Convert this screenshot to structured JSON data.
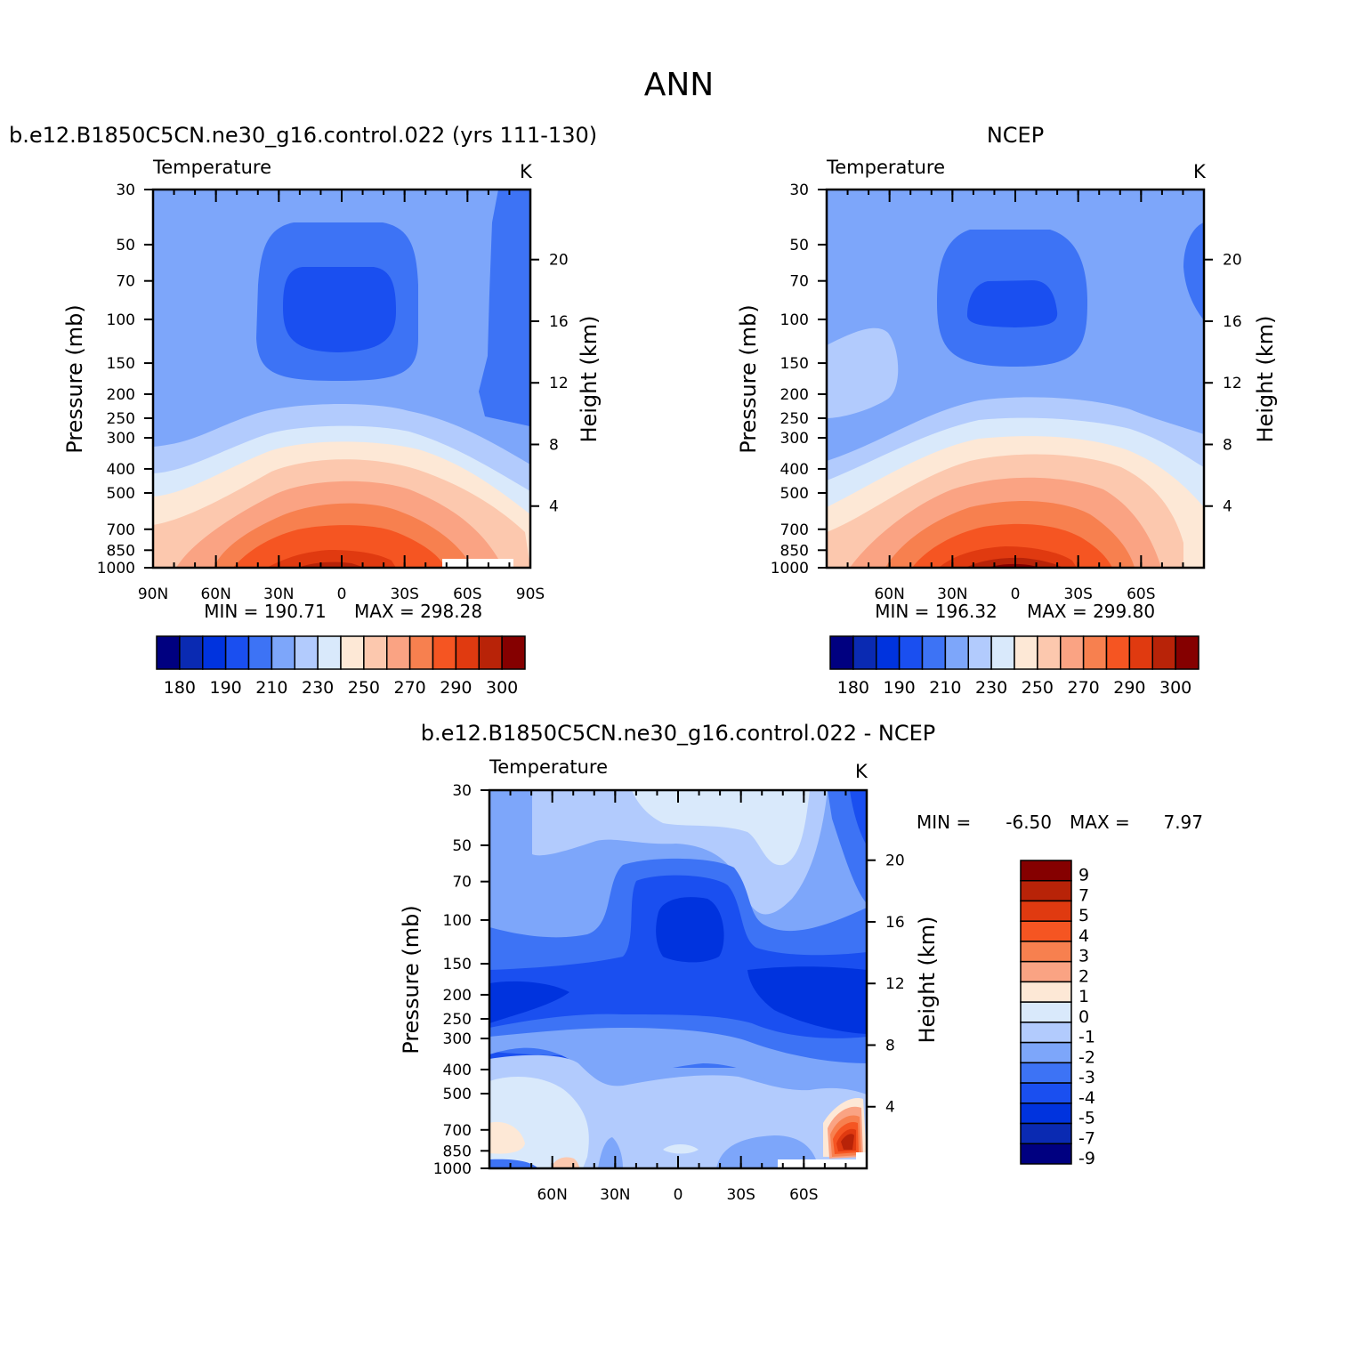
{
  "page_title": "ANN",
  "colors": {
    "abs_scale": [
      "#000080",
      "#0a2ab2",
      "#0033de",
      "#1a4ff0",
      "#3d73f5",
      "#7da6fa",
      "#b2cbfd",
      "#d9e9fb",
      "#fde8d6",
      "#fcc8ae",
      "#faa383",
      "#f7804f",
      "#f55522",
      "#e03a10",
      "#b82308",
      "#850000"
    ],
    "diff_scale": [
      "#000080",
      "#0a2ab2",
      "#0033de",
      "#1a4ff0",
      "#3d73f5",
      "#7da6fa",
      "#b2cbfd",
      "#d9e9fb",
      "#fde8d6",
      "#faa383",
      "#f7804f",
      "#f55522",
      "#e03a10",
      "#b82308",
      "#850000"
    ]
  },
  "chart_data": [
    {
      "type": "contour",
      "id": "model",
      "title": "b.e12.B1850C5CN.ne30_g16.control.022 (yrs 111-130)",
      "subtitle_left": "Temperature",
      "units": "K",
      "xlabel": "",
      "ylabel": "Pressure (mb)",
      "ylabel_right": "Height (km)",
      "x_range": [
        90,
        -90
      ],
      "x_ticks": [
        90,
        60,
        30,
        0,
        -30,
        -60,
        -90
      ],
      "x_tick_labels": [
        "90N",
        "60N",
        "30N",
        "0",
        "30S",
        "60S",
        "90S"
      ],
      "y_ticks": [
        30,
        50,
        70,
        100,
        150,
        200,
        250,
        300,
        400,
        500,
        700,
        850,
        1000
      ],
      "y_tick_labels": [
        "30",
        "50",
        "70",
        "100",
        "150",
        "200",
        "250",
        "300",
        "400",
        "500",
        "700",
        "850",
        "1000"
      ],
      "height_ticks": [
        20,
        16,
        12,
        8,
        4
      ],
      "height_tick_labels": [
        "20",
        "16",
        "12",
        "8",
        "4"
      ],
      "min_label": "MIN = 190.71",
      "max_label": "MAX = 298.28",
      "min": 190.71,
      "max": 298.28,
      "colorbar_labels": [
        "180",
        "190",
        "210",
        "230",
        "250",
        "270",
        "290",
        "300"
      ]
    },
    {
      "type": "contour",
      "id": "obs",
      "title": "NCEP",
      "subtitle_left": "Temperature",
      "units": "K",
      "ylabel": "Pressure (mb)",
      "ylabel_right": "Height (km)",
      "x_range": [
        90,
        -90
      ],
      "x_ticks": [
        60,
        30,
        0,
        -30,
        -60
      ],
      "x_tick_labels": [
        "60N",
        "30N",
        "0",
        "30S",
        "60S"
      ],
      "y_ticks": [
        30,
        50,
        70,
        100,
        150,
        200,
        250,
        300,
        400,
        500,
        700,
        850,
        1000
      ],
      "y_tick_labels": [
        "30",
        "50",
        "70",
        "100",
        "150",
        "200",
        "250",
        "300",
        "400",
        "500",
        "700",
        "850",
        "1000"
      ],
      "height_ticks": [
        20,
        16,
        12,
        8,
        4
      ],
      "height_tick_labels": [
        "20",
        "16",
        "12",
        "8",
        "4"
      ],
      "min_label": "MIN = 196.32",
      "max_label": "MAX = 299.80",
      "min": 196.32,
      "max": 299.8,
      "colorbar_labels": [
        "180",
        "190",
        "210",
        "230",
        "250",
        "270",
        "290",
        "300"
      ]
    },
    {
      "type": "contour",
      "id": "diff",
      "title": "b.e12.B1850C5CN.ne30_g16.control.022 - NCEP",
      "subtitle_left": "Temperature",
      "units": "K",
      "ylabel": "Pressure (mb)",
      "ylabel_right": "Height (km)",
      "x_range": [
        90,
        -90
      ],
      "x_ticks": [
        60,
        30,
        0,
        -30,
        -60
      ],
      "x_tick_labels": [
        "60N",
        "30N",
        "0",
        "30S",
        "60S"
      ],
      "y_ticks": [
        30,
        50,
        70,
        100,
        150,
        200,
        250,
        300,
        400,
        500,
        700,
        850,
        1000
      ],
      "y_tick_labels": [
        "30",
        "50",
        "70",
        "100",
        "150",
        "200",
        "250",
        "300",
        "400",
        "500",
        "700",
        "850",
        "1000"
      ],
      "height_ticks": [
        20,
        16,
        12,
        8,
        4
      ],
      "height_tick_labels": [
        "20",
        "16",
        "12",
        "8",
        "4"
      ],
      "min_label": "MIN =",
      "min_value": "-6.50",
      "max_label": "MAX =",
      "max_value": "7.97",
      "min": -6.5,
      "max": 7.97,
      "colorbar_labels": [
        "9",
        "7",
        "5",
        "4",
        "3",
        "2",
        "1",
        "0",
        "-1",
        "-2",
        "-3",
        "-4",
        "-5",
        "-7",
        "-9"
      ]
    }
  ]
}
